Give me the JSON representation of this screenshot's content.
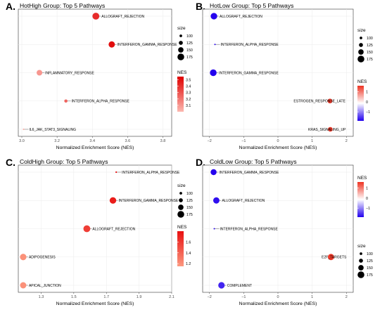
{
  "chart_data": [
    {
      "type": "scatter",
      "letter": "A.",
      "title": "HotHigh Group: Top 5 Pathways",
      "xlabel": "Normalized Enrichment Score (NES)",
      "xlim": [
        2.98,
        3.85
      ],
      "xticks": [
        "3.0",
        "3.2",
        "3.4",
        "3.6",
        "3.8"
      ],
      "pathways": [
        {
          "name": "ALLOGRAFT_REJECTION",
          "nes": 3.42,
          "size": 175
        },
        {
          "name": "INTERFERON_GAMMA_RESPONSE",
          "nes": 3.51,
          "size": 165
        },
        {
          "name": "INFLAMMATORY_RESPONSE",
          "nes": 3.1,
          "size": 155
        },
        {
          "name": "INTERFERON_ALPHA_RESPONSE",
          "nes": 3.25,
          "size": 115
        },
        {
          "name": "IL6_JAK_STAT3_SIGNALING",
          "nes": 3.01,
          "size": 87
        }
      ],
      "size_legend": {
        "title": "size",
        "values": [
          100,
          125,
          150,
          175
        ]
      },
      "color_legend": {
        "title": "NES",
        "ticks": [
          "3.5",
          "3.4",
          "3.3",
          "3.2",
          "3.1"
        ],
        "range": [
          3.0,
          3.55
        ],
        "colors": [
          "#fcb8b0",
          "#e00000"
        ]
      }
    },
    {
      "type": "scatter",
      "letter": "B.",
      "title": "HotLow Group: Top 5 Pathways",
      "xlabel": "Normalized Enrichment Score (NES)",
      "xlim": [
        -2.2,
        2.2
      ],
      "xticks": [
        "-2",
        "-1",
        "0",
        "1",
        "2"
      ],
      "pathways": [
        {
          "name": "ALLOGRAFT_REJECTION",
          "nes": -1.87,
          "size": 170
        },
        {
          "name": "INTERFERON_ALPHA_RESPONSE",
          "nes": -1.84,
          "size": 85
        },
        {
          "name": "INTERFERON_GAMMA_RESPONSE",
          "nes": -1.89,
          "size": 172
        },
        {
          "name": "ESTROGEN_RESPONSE_LATE",
          "nes": 1.52,
          "size": 140
        },
        {
          "name": "KRAS_SIGNALING_UP",
          "nes": 1.53,
          "size": 138
        }
      ],
      "size_legend": {
        "title": "size",
        "values": [
          100,
          125,
          150,
          175
        ]
      },
      "color_legend": {
        "title": "NES",
        "ticks": [
          "1",
          "0",
          "-1"
        ],
        "range": [
          -1.9,
          1.6
        ],
        "colors": [
          "#2200ee",
          "#ffffff",
          "#ee3322"
        ]
      }
    },
    {
      "type": "scatter",
      "letter": "C.",
      "title": "ColdHigh Group: Top 5 Pathways",
      "xlabel": "Normalized Enrichment Score (NES)",
      "xlim": [
        1.16,
        2.1
      ],
      "xticks": [
        "1.3",
        "1.5",
        "1.7",
        "1.9",
        "2.1"
      ],
      "pathways": [
        {
          "name": "INTERFERON_ALPHA_RESPONSE",
          "nes": 1.76,
          "size": 88
        },
        {
          "name": "INTERFERON_GAMMA_RESPONSE",
          "nes": 1.74,
          "size": 170
        },
        {
          "name": "ALLOGRAFT_REJECTION",
          "nes": 1.58,
          "size": 175
        },
        {
          "name": "ADIPOGENESIS",
          "nes": 1.19,
          "size": 168
        },
        {
          "name": "APICAL_JUNCTION",
          "nes": 1.19,
          "size": 165
        }
      ],
      "size_legend": {
        "title": "size",
        "values": [
          100,
          125,
          150,
          175
        ]
      },
      "color_legend": {
        "title": "NES",
        "ticks": [
          "1.6",
          "1.4",
          "1.2"
        ],
        "range": [
          1.15,
          1.8
        ],
        "colors": [
          "#fc9980",
          "#e81010"
        ]
      }
    },
    {
      "type": "scatter",
      "letter": "D.",
      "title": "ColdLow Group: Top 5 Pathways",
      "xlabel": "Normalized Enrichment Score (NES)",
      "xlim": [
        -2.2,
        2.2
      ],
      "xticks": [
        "-2",
        "-1",
        "0",
        "1",
        "2"
      ],
      "pathways": [
        {
          "name": "INTERFERON_GAMMA_RESPONSE",
          "nes": -1.88,
          "size": 160
        },
        {
          "name": "ALLOGRAFT_REJECTION",
          "nes": -1.8,
          "size": 165
        },
        {
          "name": "INTERFERON_ALPHA_RESPONSE",
          "nes": -1.86,
          "size": 85
        },
        {
          "name": "E2F_TARGETS",
          "nes": 1.55,
          "size": 165
        },
        {
          "name": "COMPLEMENT",
          "nes": -1.65,
          "size": 168
        }
      ],
      "size_legend": {
        "title": "size",
        "values": [
          100,
          125,
          150,
          175
        ]
      },
      "color_legend": {
        "title": "NES",
        "ticks": [
          "1",
          "0",
          "-1"
        ],
        "range": [
          -1.9,
          1.6
        ],
        "colors": [
          "#2200ee",
          "#ffffff",
          "#ee3322"
        ]
      }
    }
  ]
}
